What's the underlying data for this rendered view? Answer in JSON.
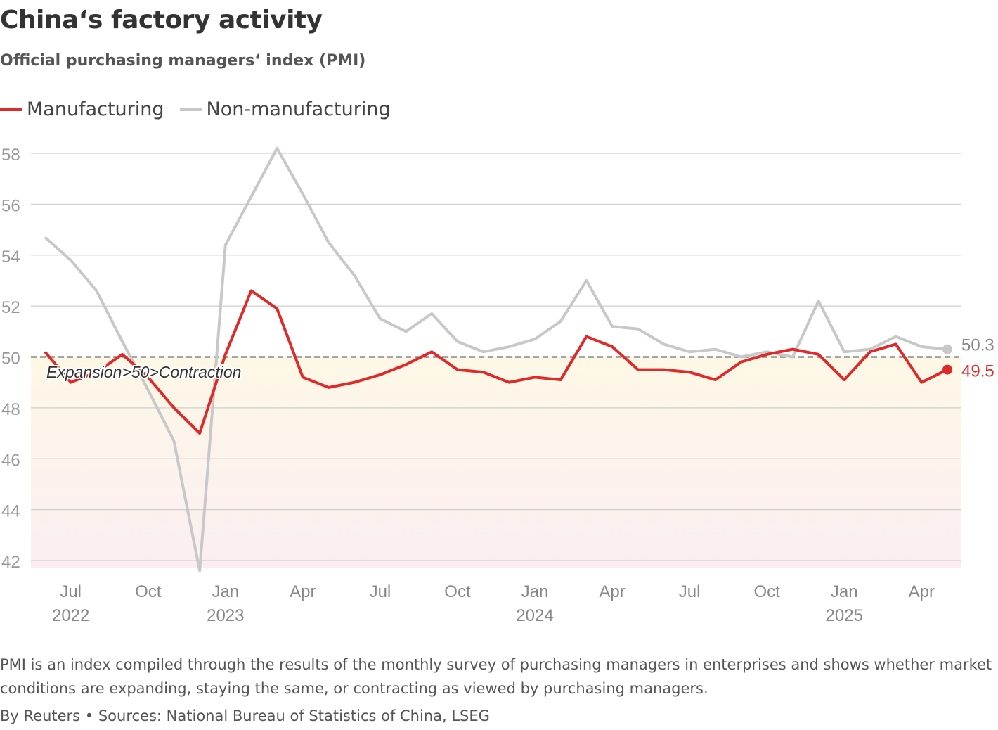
{
  "title": "China‘s factory activity",
  "subtitle": "Official purchasing managers‘ index (PMI)",
  "note": "PMI is an index compiled through the results of the monthly survey of purchasing managers in enterprises and shows whether market conditions are expanding, staying the same, or contracting as viewed by purchasing managers.",
  "source": "By Reuters • Sources: National Bureau of Statistics of China, LSEG",
  "chart_data": {
    "type": "line",
    "x": [
      "Jun 2022",
      "Jul 2022",
      "Aug 2022",
      "Sep 2022",
      "Oct 2022",
      "Nov 2022",
      "Dec 2022",
      "Jan 2023",
      "Feb 2023",
      "Mar 2023",
      "Apr 2023",
      "May 2023",
      "Jun 2023",
      "Jul 2023",
      "Aug 2023",
      "Sep 2023",
      "Oct 2023",
      "Nov 2023",
      "Dec 2023",
      "Jan 2024",
      "Feb 2024",
      "Mar 2024",
      "Apr 2024",
      "May 2024",
      "Jun 2024",
      "Jul 2024",
      "Aug 2024",
      "Sep 2024",
      "Oct 2024",
      "Nov 2024",
      "Dec 2024",
      "Jan 2025",
      "Feb 2025",
      "Mar 2025",
      "Apr 2025",
      "May 2025"
    ],
    "series": [
      {
        "name": "Manufacturing",
        "color": "#e02a2a",
        "values": [
          50.2,
          49.0,
          49.4,
          50.1,
          49.2,
          48.0,
          47.0,
          50.1,
          52.6,
          51.9,
          49.2,
          48.8,
          49.0,
          49.3,
          49.7,
          50.2,
          49.5,
          49.4,
          49.0,
          49.2,
          49.1,
          50.8,
          50.4,
          49.5,
          49.5,
          49.4,
          49.1,
          49.8,
          50.1,
          50.3,
          50.1,
          49.1,
          50.2,
          50.5,
          49.0,
          49.5
        ],
        "end_label": "49.5"
      },
      {
        "name": "Non-manufacturing",
        "color": "#c8c8c8",
        "values": [
          54.7,
          53.8,
          52.6,
          50.6,
          48.7,
          46.7,
          41.6,
          54.4,
          56.3,
          58.2,
          56.4,
          54.5,
          53.2,
          51.5,
          51.0,
          51.7,
          50.6,
          50.2,
          50.4,
          50.7,
          51.4,
          53.0,
          51.2,
          51.1,
          50.5,
          50.2,
          50.3,
          50.0,
          50.2,
          50.0,
          52.2,
          50.2,
          50.3,
          50.8,
          50.4,
          50.3
        ],
        "end_label": "50.3"
      }
    ],
    "yticks": [
      "42",
      "44",
      "46",
      "48",
      "50",
      "52",
      "54",
      "56",
      "58"
    ],
    "ylim": [
      42,
      58
    ],
    "xticks": [
      {
        "index": 1,
        "label": "Jul",
        "year": "2022"
      },
      {
        "index": 4,
        "label": "Oct",
        "year": ""
      },
      {
        "index": 7,
        "label": "Jan",
        "year": "2023"
      },
      {
        "index": 10,
        "label": "Apr",
        "year": ""
      },
      {
        "index": 13,
        "label": "Jul",
        "year": ""
      },
      {
        "index": 16,
        "label": "Oct",
        "year": ""
      },
      {
        "index": 19,
        "label": "Jan",
        "year": "2024"
      },
      {
        "index": 22,
        "label": "Apr",
        "year": ""
      },
      {
        "index": 25,
        "label": "Jul",
        "year": ""
      },
      {
        "index": 28,
        "label": "Oct",
        "year": ""
      },
      {
        "index": 31,
        "label": "Jan",
        "year": "2025"
      },
      {
        "index": 34,
        "label": "Apr",
        "year": ""
      }
    ],
    "reference_line": {
      "value": 50,
      "label": "Expansion>50>Contraction"
    },
    "legend": "top-left",
    "grid": true
  }
}
